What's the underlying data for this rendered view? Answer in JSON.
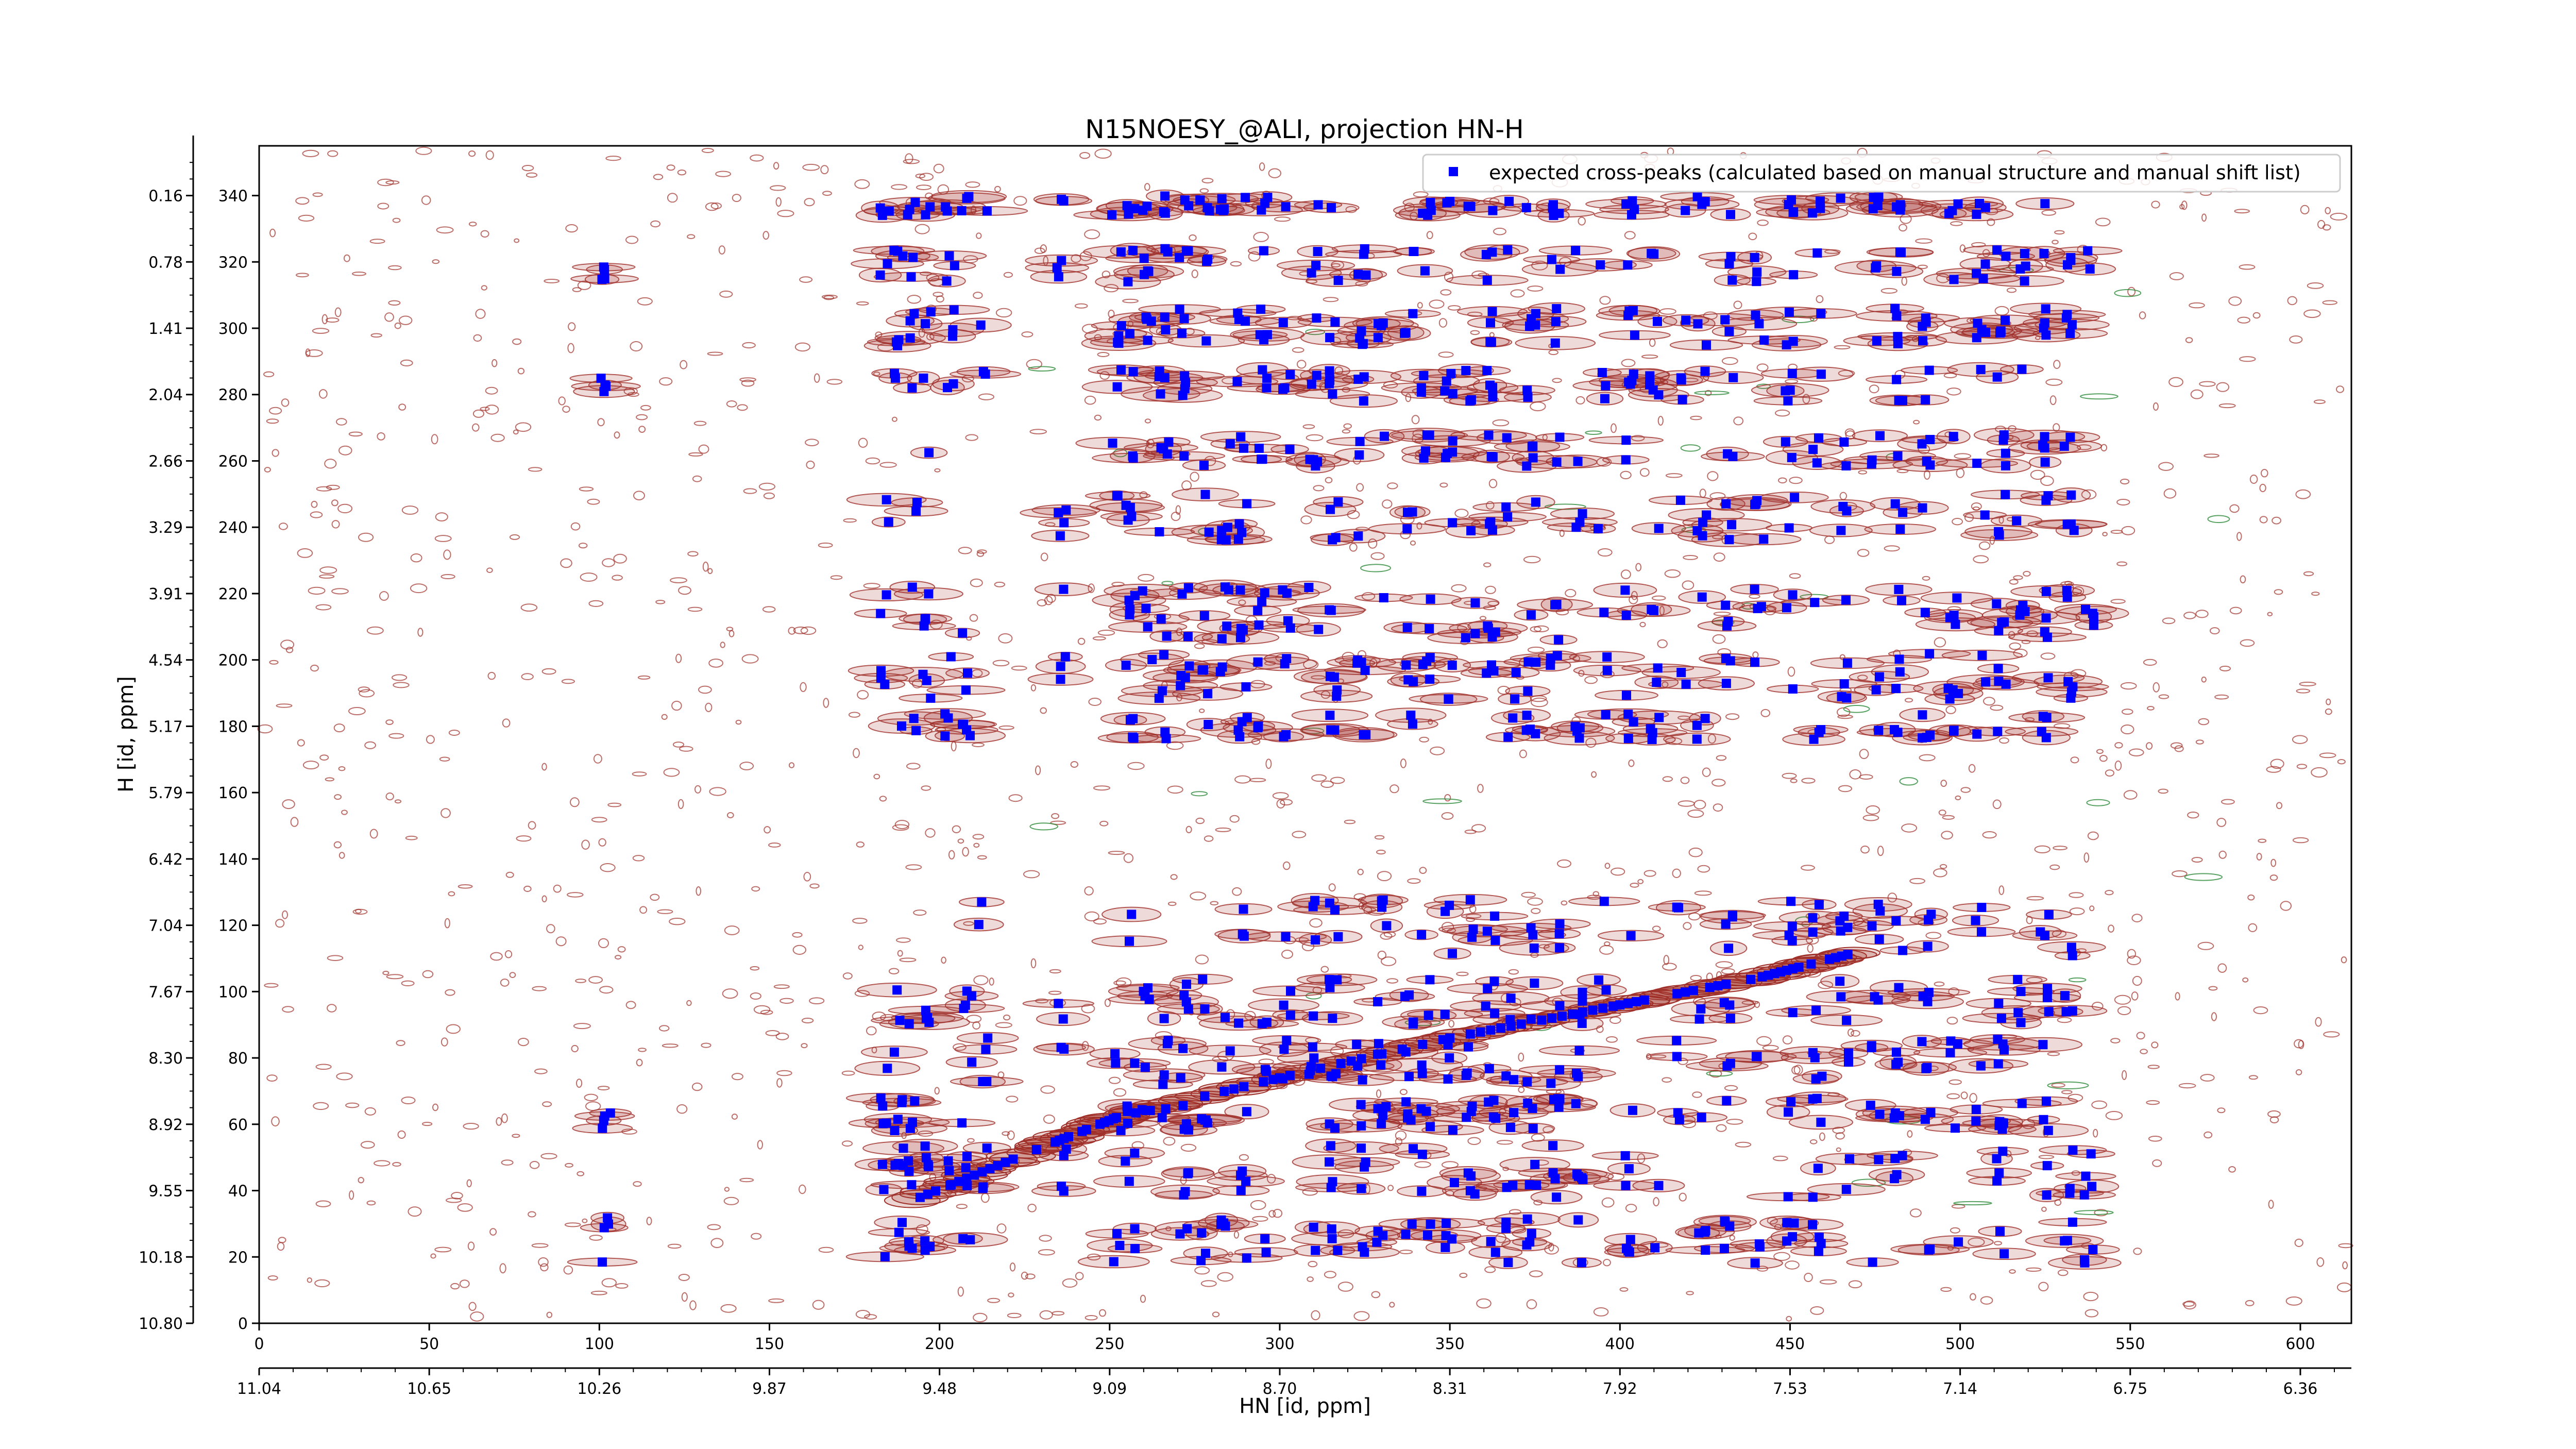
{
  "chart_data": {
    "type": "scatter",
    "title": "N15NOESY_@ALI, projection HN-H",
    "xlabel": "HN [id, ppm]",
    "ylabel": "H [id, ppm]",
    "x_index_range": [
      0,
      615
    ],
    "y_index_range": [
      0,
      355
    ],
    "x_index_ticks": [
      "0",
      "50",
      "100",
      "150",
      "200",
      "250",
      "300",
      "350",
      "400",
      "450",
      "500",
      "550",
      "600"
    ],
    "x_ppm_ticks": [
      "11.04",
      "10.65",
      "10.26",
      "9.87",
      "9.48",
      "9.09",
      "8.70",
      "8.31",
      "7.92",
      "7.53",
      "7.14",
      "6.75",
      "6.36"
    ],
    "y_index_ticks": [
      "0",
      "20",
      "40",
      "60",
      "80",
      "100",
      "120",
      "140",
      "160",
      "180",
      "200",
      "220",
      "240",
      "260",
      "280",
      "300",
      "320",
      "340"
    ],
    "y_ppm_ticks": [
      "10.80",
      "10.18",
      "9.55",
      "8.92",
      "8.30",
      "7.67",
      "7.04",
      "6.42",
      "5.79",
      "5.17",
      "4.54",
      "3.91",
      "3.29",
      "2.66",
      "2.04",
      "1.41",
      "0.78",
      "0.16"
    ],
    "legend": {
      "position": "top-right",
      "entries": [
        "expected cross-peaks (calculated based on manual structure and manual shift list)"
      ]
    },
    "series": [
      {
        "name": "expected cross-peaks (calculated based on manual structure and manual shift list)",
        "color": "#0000ff",
        "marker": "square",
        "columns": [
          102,
          184,
          188,
          192,
          196,
          203,
          208,
          213,
          236,
          252,
          256,
          261,
          266,
          272,
          278,
          284,
          289,
          295,
          302,
          310,
          316,
          324,
          330,
          338,
          343,
          350,
          356,
          362,
          368,
          374,
          381,
          388,
          395,
          403,
          410,
          418,
          424,
          432,
          441,
          450,
          458,
          466,
          475,
          482,
          490,
          498,
          506,
          512,
          518,
          525,
          532,
          538
        ],
        "row_bands": [
          [
            18,
            32
          ],
          [
            38,
            54
          ],
          [
            58,
            68
          ],
          [
            72,
            86
          ],
          [
            90,
            104
          ],
          [
            110,
            128
          ],
          [
            176,
            184
          ],
          [
            188,
            202
          ],
          [
            206,
            222
          ],
          [
            236,
            250
          ],
          [
            258,
            268
          ],
          [
            278,
            288
          ],
          [
            294,
            306
          ],
          [
            314,
            324
          ],
          [
            334,
            340
          ]
        ],
        "diagonal": [
          [
            192,
            37
          ],
          [
            230,
            53
          ],
          [
            252,
            62
          ],
          [
            300,
            74
          ],
          [
            350,
            86
          ],
          [
            400,
            96
          ],
          [
            440,
            104
          ],
          [
            470,
            112
          ]
        ]
      }
    ],
    "contour_colors": {
      "positive": "#a0302a",
      "negative": "#2e8b3a"
    }
  }
}
